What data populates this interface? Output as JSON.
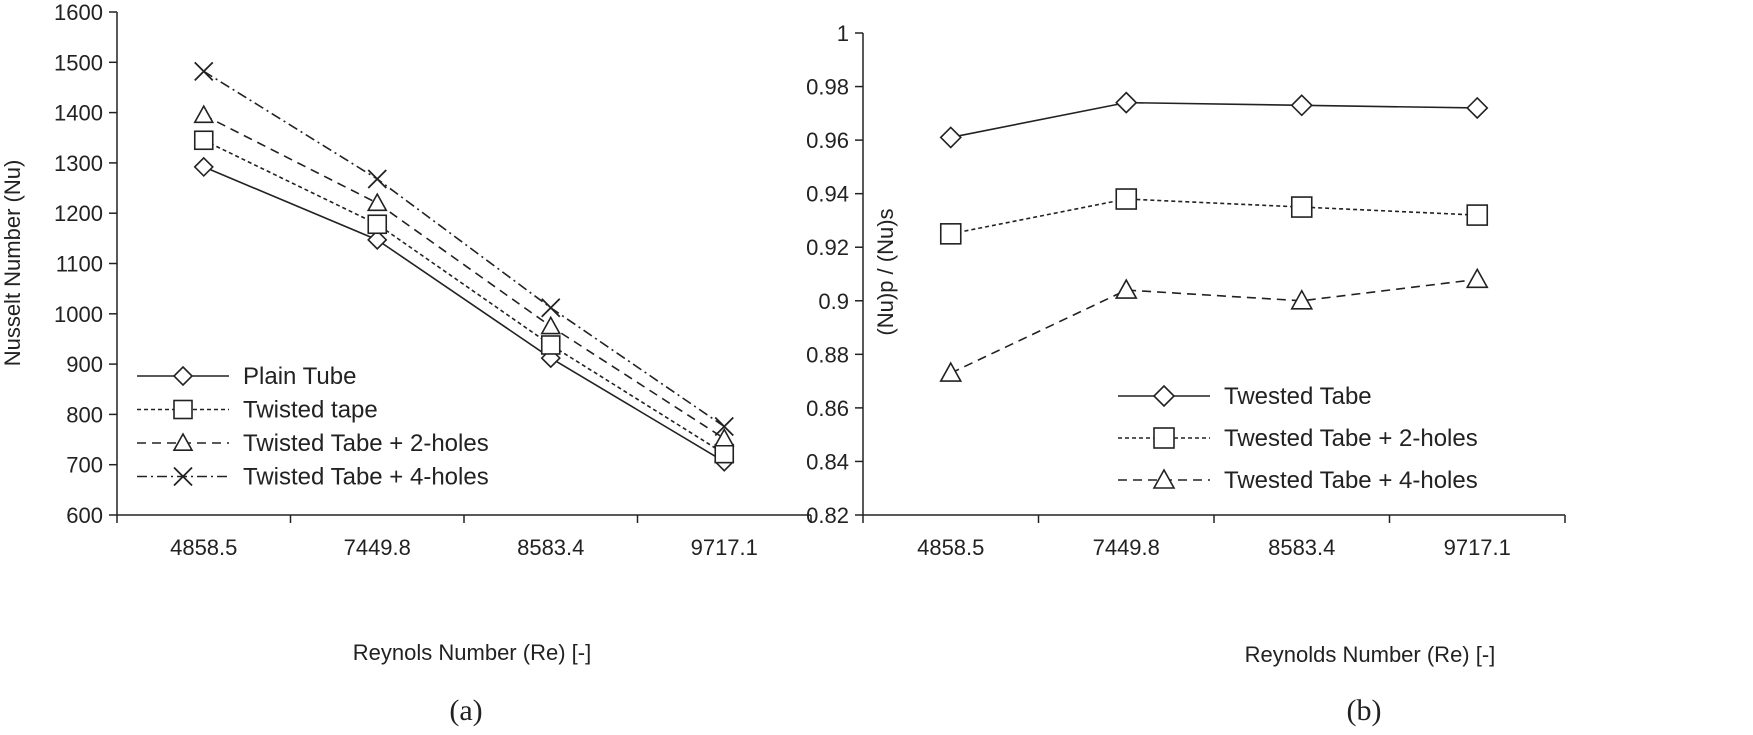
{
  "chart_data": [
    {
      "type": "line",
      "caption": "(a)",
      "xlabel": "Reynols Number (Re) [-]",
      "ylabel": "Nusselt Number (Nu)",
      "categories": [
        "4858.5",
        "7449.8",
        "8583.4",
        "9717.1"
      ],
      "ylim": [
        600,
        1600
      ],
      "yticks": [
        "600",
        "700",
        "800",
        "900",
        "1000",
        "1100",
        "1200",
        "1300",
        "1400",
        "1500",
        "1600"
      ],
      "legend_position": "bottom-left",
      "series": [
        {
          "name": "Plain Tube",
          "values": [
            1292,
            1147,
            912,
            706
          ],
          "marker": "diamond",
          "dash": "solid"
        },
        {
          "name": "Twisted tape",
          "values": [
            1345,
            1178,
            938,
            722
          ],
          "marker": "square",
          "dash": "dotted"
        },
        {
          "name": "Twisted Tabe + 2-holes",
          "values": [
            1395,
            1220,
            975,
            752
          ],
          "marker": "triangle",
          "dash": "dashed"
        },
        {
          "name": "Twisted Tabe + 4-holes",
          "values": [
            1482,
            1268,
            1012,
            776
          ],
          "marker": "x",
          "dash": "dashdot"
        }
      ]
    },
    {
      "type": "line",
      "caption": "(b)",
      "xlabel": "Reynolds Number (Re) [-]",
      "ylabel": "(Nu)p / (Nu)s",
      "categories": [
        "4858.5",
        "7449.8",
        "8583.4",
        "9717.1"
      ],
      "ylim": [
        0.82,
        1
      ],
      "yticks": [
        "0.82",
        "0.84",
        "0.86",
        "0.88",
        "0.9",
        "0.92",
        "0.94",
        "0.96",
        "0.98",
        "1"
      ],
      "legend_position": "bottom-right",
      "series": [
        {
          "name": "Twested Tabe",
          "values": [
            0.961,
            0.974,
            0.973,
            0.972
          ],
          "marker": "diamond",
          "dash": "solid"
        },
        {
          "name": "Twested Tabe + 2-holes",
          "values": [
            0.925,
            0.938,
            0.935,
            0.932
          ],
          "marker": "square",
          "dash": "dotted"
        },
        {
          "name": "Twested Tabe + 4-holes",
          "values": [
            0.873,
            0.904,
            0.9,
            0.908
          ],
          "marker": "triangle",
          "dash": "dashed"
        }
      ]
    }
  ]
}
